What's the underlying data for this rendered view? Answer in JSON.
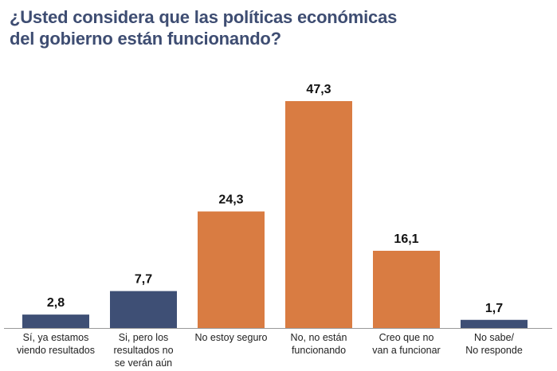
{
  "title_lines": [
    "¿Usted considera que las políticas económicas",
    "del gobierno están funcionando?"
  ],
  "chart_data": {
    "type": "bar",
    "title": "¿Usted considera que las políticas económicas del gobierno están funcionando?",
    "categories": [
      [
        "Sí, ya estamos",
        "viendo resultados"
      ],
      [
        "Si, pero los",
        "resultados no",
        "se verán aún"
      ],
      [
        "No estoy seguro"
      ],
      [
        "No, no están",
        "funcionando"
      ],
      [
        "Creo que no",
        "van a funcionar"
      ],
      [
        "No sabe/",
        "No responde"
      ]
    ],
    "values": [
      2.8,
      7.7,
      24.3,
      47.3,
      16.1,
      1.7
    ],
    "value_labels": [
      "2,8",
      "7,7",
      "24,3",
      "47,3",
      "16,1",
      "1,7"
    ],
    "colors": [
      "#3e4f75",
      "#3e4f75",
      "#d97c42",
      "#d97c42",
      "#d97c42",
      "#3e4f75"
    ],
    "ylim": [
      0,
      50
    ],
    "grid": false,
    "axis_color": "#999999"
  }
}
